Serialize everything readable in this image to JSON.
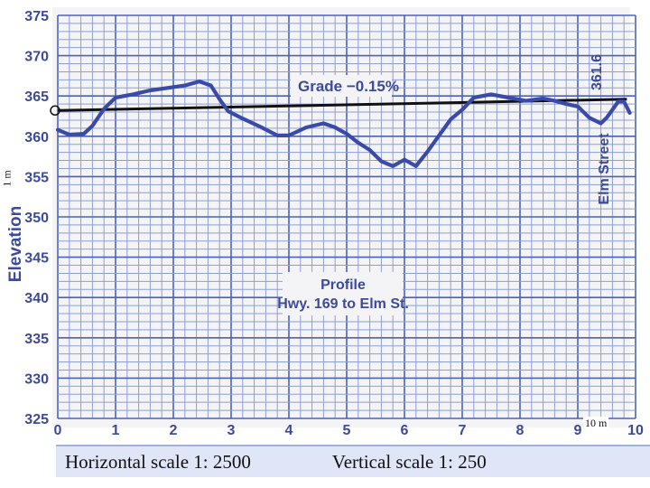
{
  "chart_data": {
    "type": "line",
    "title": "Profile",
    "subtitle": "Hwy. 169 to Elm St.",
    "ylabel": "Elevation",
    "xlabel": "",
    "xlim": [
      0,
      10
    ],
    "ylim": [
      325,
      375
    ],
    "x_ticks": [
      "0",
      "1",
      "2",
      "3",
      "4",
      "5",
      "6",
      "7",
      "8",
      "9",
      "10"
    ],
    "y_ticks": [
      "325",
      "330",
      "335",
      "340",
      "345",
      "350",
      "355",
      "360",
      "365",
      "370",
      "375"
    ],
    "grid": true,
    "grade_annotation": "Grade −0.15%",
    "end_label": "361.6",
    "end_station_label": "Elm Street",
    "series": [
      {
        "x": [
          0,
          0.2,
          0.45,
          0.6,
          0.8,
          1.0,
          1.3,
          1.6,
          1.9,
          2.2,
          2.45,
          2.65,
          2.8,
          2.95,
          3.2,
          3.5,
          3.8,
          4.0,
          4.3,
          4.6,
          4.8,
          5.0,
          5.2,
          5.4,
          5.6,
          5.8,
          6.0,
          6.2,
          6.4,
          6.6,
          6.8,
          7.0,
          7.2,
          7.5,
          7.8,
          8.1,
          8.4,
          8.6,
          8.8,
          9.0,
          9.2,
          9.4,
          9.5,
          9.6,
          9.7,
          9.8,
          9.9
        ],
        "y": [
          360.8,
          360.2,
          360.3,
          361.3,
          363.4,
          364.8,
          365.2,
          365.7,
          366.0,
          366.3,
          366.8,
          366.3,
          364.6,
          363.1,
          362.2,
          361.2,
          360.1,
          360.1,
          361.1,
          361.6,
          361.1,
          360.3,
          359.2,
          358.3,
          356.9,
          356.3,
          357.1,
          356.3,
          358.1,
          360.1,
          362.1,
          363.3,
          364.8,
          365.2,
          364.8,
          364.4,
          364.7,
          364.4,
          364.0,
          363.7,
          362.3,
          361.6,
          362.3,
          363.3,
          364.3,
          364.3,
          362.9
        ]
      }
    ],
    "grade_line": {
      "x": [
        0,
        9.85
      ],
      "y": [
        363.2,
        364.6
      ]
    },
    "colors": {
      "background": "#f4f4f7",
      "grid": "#8c9fd4",
      "profile": "#3a4aa8",
      "grade": "#111111",
      "text": "#3c4a9a"
    }
  },
  "labels": {
    "scale_vertical_unit": "1 m",
    "scale_horizontal_unit": "10 m",
    "horizontal_scale": "Horizontal scale 1: 2500",
    "vertical_scale": "Vertical scale 1: 250"
  }
}
